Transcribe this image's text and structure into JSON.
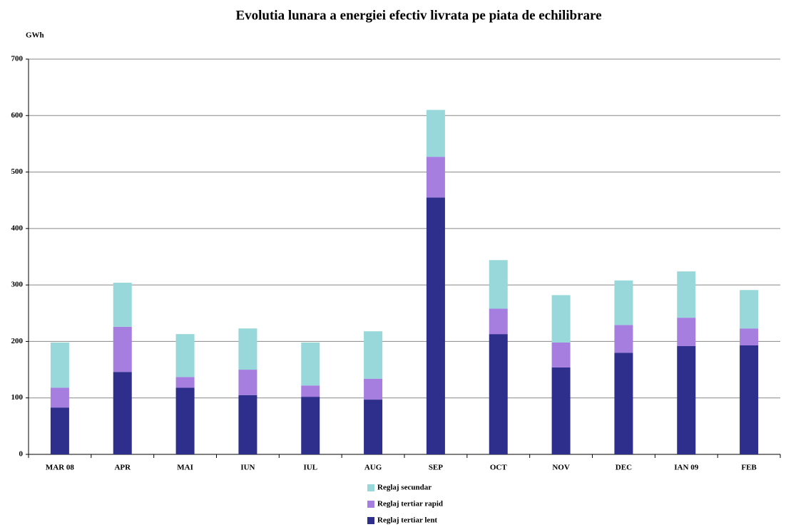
{
  "chart_data": {
    "type": "stacked_bar",
    "title": "Evolutia lunara a energiei efectiv livrata pe piata de echilibrare",
    "y_label": "GWh",
    "categories": [
      "MAR 08",
      "APR",
      "MAI",
      "IUN",
      "IUL",
      "AUG",
      "SEP",
      "OCT",
      "NOV",
      "DEC",
      "IAN 09",
      "FEB"
    ],
    "series": [
      {
        "name": "Reglaj tertiar lent",
        "color": "#2e2e8c",
        "values": [
          83,
          146,
          118,
          105,
          102,
          97,
          455,
          213,
          154,
          180,
          192,
          193
        ]
      },
      {
        "name": "Reglaj tertiar rapid",
        "color": "#a57ee0",
        "values": [
          35,
          80,
          19,
          45,
          20,
          37,
          72,
          45,
          44,
          49,
          50,
          30
        ]
      },
      {
        "name": "Reglaj secundar",
        "color": "#98d8da",
        "values": [
          80,
          78,
          76,
          73,
          76,
          84,
          83,
          86,
          84,
          79,
          82,
          68
        ]
      }
    ],
    "ylim": [
      0,
      700
    ],
    "yticks": [
      0,
      100,
      200,
      300,
      400,
      500,
      600,
      700
    ],
    "grid": true
  }
}
